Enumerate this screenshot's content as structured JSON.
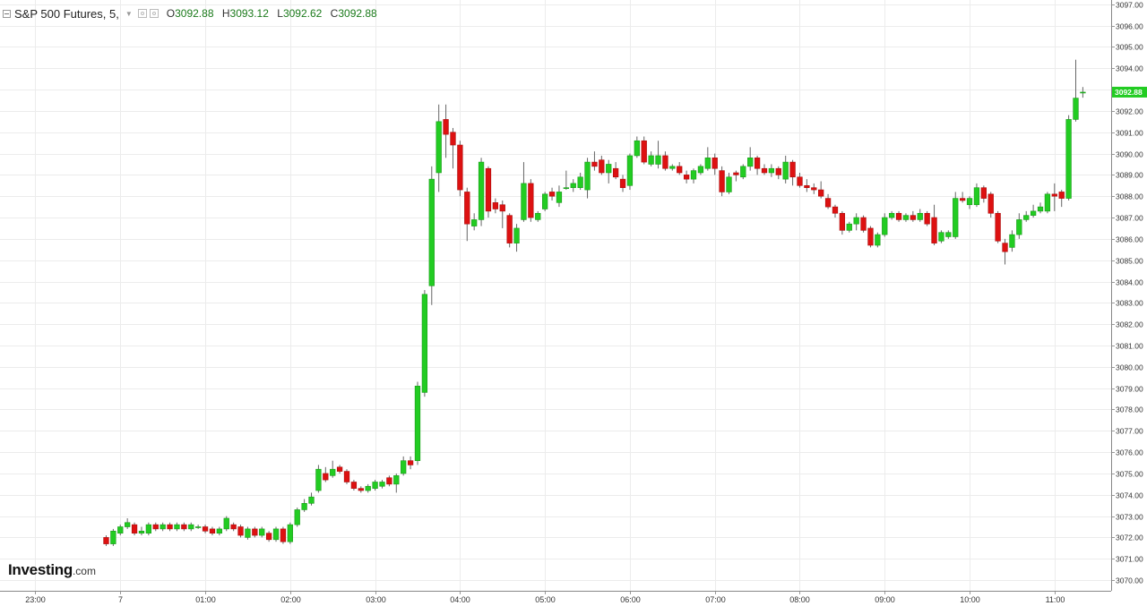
{
  "header": {
    "title": "S&P 500 Futures, 5,",
    "open_label": "O",
    "open": "3092.88",
    "high_label": "H",
    "high": "3093.12",
    "low_label": "L",
    "low": "3092.62",
    "close_label": "C",
    "close": "3092.88"
  },
  "logo": {
    "main": "Investing",
    "suffix": ".com"
  },
  "colors": {
    "up": "#22cc22",
    "down": "#dd1111",
    "wick": "#666666",
    "grid": "#ececec",
    "last_price_bg": "#22cc22"
  },
  "chart_data": {
    "type": "candlestick",
    "interval": "5",
    "ylim": [
      3069.5,
      3097.2
    ],
    "y_ticks": [
      "3070.00",
      "3071.00",
      "3072.00",
      "3073.00",
      "3074.00",
      "3075.00",
      "3076.00",
      "3077.00",
      "3078.00",
      "3079.00",
      "3080.00",
      "3081.00",
      "3082.00",
      "3083.00",
      "3084.00",
      "3085.00",
      "3086.00",
      "3087.00",
      "3088.00",
      "3089.00",
      "3090.00",
      "3091.00",
      "3092.00",
      "3093.00",
      "3094.00",
      "3095.00",
      "3096.00",
      "3097.00"
    ],
    "x_ticks": [
      {
        "label": "23:00",
        "t": -12
      },
      {
        "label": "7",
        "t": 0
      },
      {
        "label": "01:00",
        "t": 12
      },
      {
        "label": "02:00",
        "t": 24
      },
      {
        "label": "03:00",
        "t": 36
      },
      {
        "label": "04:00",
        "t": 48
      },
      {
        "label": "05:00",
        "t": 60
      },
      {
        "label": "06:00",
        "t": 72
      },
      {
        "label": "07:00",
        "t": 84
      },
      {
        "label": "08:00",
        "t": 96
      },
      {
        "label": "09:00",
        "t": 108
      },
      {
        "label": "10:00",
        "t": 120
      },
      {
        "label": "11:00",
        "t": 132
      }
    ],
    "t_range": [
      -17,
      140
    ],
    "last_price": "3092.88",
    "candles": [
      [
        3072.0,
        3071.7,
        3072.1,
        3071.6
      ],
      [
        3071.7,
        3072.3,
        3072.4,
        3071.6
      ],
      [
        3072.2,
        3072.5,
        3072.6,
        3072.1
      ],
      [
        3072.5,
        3072.7,
        3072.9,
        3072.4
      ],
      [
        3072.6,
        3072.2,
        3072.7,
        3072.1
      ],
      [
        3072.2,
        3072.3,
        3072.5,
        3072.1
      ],
      [
        3072.2,
        3072.6,
        3072.7,
        3072.1
      ],
      [
        3072.6,
        3072.4,
        3072.7,
        3072.3
      ],
      [
        3072.4,
        3072.6,
        3072.7,
        3072.3
      ],
      [
        3072.6,
        3072.4,
        3072.7,
        3072.3
      ],
      [
        3072.4,
        3072.6,
        3072.7,
        3072.3
      ],
      [
        3072.6,
        3072.4,
        3072.7,
        3072.3
      ],
      [
        3072.4,
        3072.6,
        3072.7,
        3072.3
      ],
      [
        3072.5,
        3072.5,
        3072.6,
        3072.4
      ],
      [
        3072.5,
        3072.3,
        3072.6,
        3072.2
      ],
      [
        3072.4,
        3072.2,
        3072.5,
        3072.1
      ],
      [
        3072.2,
        3072.4,
        3072.5,
        3072.1
      ],
      [
        3072.4,
        3072.9,
        3073.0,
        3072.3
      ],
      [
        3072.6,
        3072.4,
        3072.7,
        3072.3
      ],
      [
        3072.5,
        3072.1,
        3072.6,
        3072.0
      ],
      [
        3072.0,
        3072.4,
        3072.5,
        3071.9
      ],
      [
        3072.4,
        3072.1,
        3072.5,
        3072.0
      ],
      [
        3072.1,
        3072.4,
        3072.5,
        3072.0
      ],
      [
        3072.2,
        3071.9,
        3072.3,
        3071.8
      ],
      [
        3071.9,
        3072.4,
        3072.5,
        3071.8
      ],
      [
        3072.4,
        3071.8,
        3072.5,
        3071.7
      ],
      [
        3071.8,
        3072.6,
        3072.7,
        3071.7
      ],
      [
        3072.6,
        3073.3,
        3073.4,
        3072.5
      ],
      [
        3073.3,
        3073.6,
        3073.8,
        3073.2
      ],
      [
        3073.6,
        3073.9,
        3074.1,
        3073.5
      ],
      [
        3074.2,
        3075.2,
        3075.4,
        3074.1
      ],
      [
        3075.0,
        3074.7,
        3075.3,
        3074.6
      ],
      [
        3074.9,
        3075.2,
        3075.6,
        3074.8
      ],
      [
        3075.3,
        3075.1,
        3075.4,
        3075.0
      ],
      [
        3075.1,
        3074.6,
        3075.2,
        3074.5
      ],
      [
        3074.6,
        3074.3,
        3074.7,
        3074.2
      ],
      [
        3074.3,
        3074.2,
        3074.4,
        3074.1
      ],
      [
        3074.2,
        3074.4,
        3074.5,
        3074.1
      ],
      [
        3074.3,
        3074.6,
        3074.7,
        3074.2
      ],
      [
        3074.4,
        3074.6,
        3074.7,
        3074.3
      ],
      [
        3074.8,
        3074.5,
        3074.9,
        3074.4
      ],
      [
        3074.5,
        3074.9,
        3075.0,
        3074.1
      ],
      [
        3075.0,
        3075.6,
        3075.8,
        3074.9
      ],
      [
        3075.6,
        3075.4,
        3075.8,
        3075.2
      ],
      [
        3075.6,
        3079.1,
        3079.3,
        3075.4
      ],
      [
        3078.8,
        3083.4,
        3083.6,
        3078.6
      ],
      [
        3083.8,
        3088.8,
        3089.4,
        3082.9
      ],
      [
        3089.1,
        3091.5,
        3092.3,
        3088.2
      ],
      [
        3091.6,
        3090.9,
        3092.3,
        3089.8
      ],
      [
        3091.0,
        3090.4,
        3091.2,
        3089.3
      ],
      [
        3090.4,
        3088.3,
        3090.6,
        3088.0
      ],
      [
        3088.2,
        3086.7,
        3088.4,
        3085.9
      ],
      [
        3086.6,
        3086.9,
        3087.2,
        3086.4
      ],
      [
        3086.9,
        3089.6,
        3089.8,
        3086.6
      ],
      [
        3089.3,
        3087.3,
        3089.4,
        3087.0
      ],
      [
        3087.7,
        3087.4,
        3087.9,
        3087.2
      ],
      [
        3087.6,
        3087.3,
        3087.8,
        3086.5
      ],
      [
        3087.1,
        3085.8,
        3087.2,
        3085.6
      ],
      [
        3085.8,
        3086.5,
        3086.7,
        3085.4
      ],
      [
        3086.9,
        3088.6,
        3089.6,
        3086.8
      ],
      [
        3088.6,
        3087.0,
        3088.8,
        3086.8
      ],
      [
        3086.9,
        3087.2,
        3087.3,
        3086.8
      ],
      [
        3087.4,
        3088.1,
        3088.2,
        3087.3
      ],
      [
        3088.2,
        3088.0,
        3088.4,
        3087.8
      ],
      [
        3087.7,
        3088.2,
        3088.5,
        3087.5
      ],
      [
        3088.4,
        3088.4,
        3089.2,
        3088.3
      ],
      [
        3088.4,
        3088.6,
        3088.8,
        3088.2
      ],
      [
        3088.4,
        3088.9,
        3089.1,
        3088.3
      ],
      [
        3088.3,
        3089.6,
        3089.8,
        3087.9
      ],
      [
        3089.6,
        3089.4,
        3090.1,
        3089.2
      ],
      [
        3089.7,
        3089.1,
        3089.9,
        3089.0
      ],
      [
        3089.1,
        3089.5,
        3089.7,
        3088.6
      ],
      [
        3089.3,
        3088.9,
        3089.6,
        3088.8
      ],
      [
        3088.8,
        3088.4,
        3089.0,
        3088.2
      ],
      [
        3088.5,
        3089.9,
        3090.0,
        3088.3
      ],
      [
        3089.9,
        3090.6,
        3090.8,
        3089.8
      ],
      [
        3090.6,
        3089.6,
        3090.8,
        3089.5
      ],
      [
        3089.5,
        3089.9,
        3090.1,
        3089.4
      ],
      [
        3089.5,
        3089.9,
        3090.6,
        3089.3
      ],
      [
        3089.9,
        3089.3,
        3090.1,
        3089.2
      ],
      [
        3089.3,
        3089.4,
        3089.5,
        3089.2
      ],
      [
        3089.4,
        3089.1,
        3089.6,
        3089.0
      ],
      [
        3089.0,
        3088.8,
        3089.2,
        3088.6
      ],
      [
        3088.8,
        3089.2,
        3089.3,
        3088.6
      ],
      [
        3089.1,
        3089.4,
        3089.5,
        3089.0
      ],
      [
        3089.3,
        3089.8,
        3090.3,
        3089.2
      ],
      [
        3089.8,
        3089.3,
        3090.0,
        3089.0
      ],
      [
        3089.2,
        3088.2,
        3089.4,
        3088.0
      ],
      [
        3088.2,
        3088.9,
        3089.1,
        3088.1
      ],
      [
        3089.1,
        3089.0,
        3089.2,
        3088.7
      ],
      [
        3088.9,
        3089.4,
        3089.5,
        3088.8
      ],
      [
        3089.4,
        3089.8,
        3090.3,
        3089.2
      ],
      [
        3089.8,
        3089.3,
        3089.9,
        3089.0
      ],
      [
        3089.3,
        3089.1,
        3089.5,
        3089.0
      ],
      [
        3089.1,
        3089.3,
        3089.5,
        3088.9
      ],
      [
        3089.3,
        3089.0,
        3089.4,
        3088.8
      ],
      [
        3088.8,
        3089.6,
        3089.9,
        3088.6
      ],
      [
        3089.6,
        3088.9,
        3089.7,
        3088.5
      ],
      [
        3088.9,
        3088.5,
        3089.1,
        3088.4
      ],
      [
        3088.5,
        3088.4,
        3088.8,
        3088.2
      ],
      [
        3088.4,
        3088.3,
        3088.6,
        3088.1
      ],
      [
        3088.3,
        3088.0,
        3088.7,
        3087.9
      ],
      [
        3087.9,
        3087.5,
        3088.1,
        3087.4
      ],
      [
        3087.5,
        3087.2,
        3087.6,
        3087.0
      ],
      [
        3087.2,
        3086.4,
        3087.3,
        3086.2
      ],
      [
        3086.4,
        3086.7,
        3086.8,
        3086.3
      ],
      [
        3086.7,
        3087.0,
        3087.2,
        3086.4
      ],
      [
        3087.0,
        3086.4,
        3087.1,
        3086.3
      ],
      [
        3086.5,
        3085.7,
        3086.6,
        3085.6
      ],
      [
        3085.7,
        3086.2,
        3086.3,
        3085.6
      ],
      [
        3086.2,
        3087.0,
        3087.2,
        3086.1
      ],
      [
        3087.0,
        3087.2,
        3087.3,
        3086.9
      ],
      [
        3087.2,
        3086.9,
        3087.3,
        3086.8
      ],
      [
        3086.9,
        3087.1,
        3087.2,
        3086.8
      ],
      [
        3087.1,
        3086.9,
        3087.3,
        3086.8
      ],
      [
        3086.9,
        3087.2,
        3087.4,
        3086.8
      ],
      [
        3087.2,
        3086.7,
        3087.3,
        3086.6
      ],
      [
        3087.0,
        3085.8,
        3087.6,
        3085.7
      ],
      [
        3085.9,
        3086.3,
        3086.4,
        3085.8
      ],
      [
        3086.1,
        3086.3,
        3086.4,
        3086.0
      ],
      [
        3086.1,
        3087.9,
        3088.2,
        3086.0
      ],
      [
        3087.9,
        3087.8,
        3088.2,
        3087.7
      ],
      [
        3087.6,
        3087.9,
        3088.0,
        3087.4
      ],
      [
        3087.6,
        3088.4,
        3088.6,
        3087.5
      ],
      [
        3088.4,
        3087.9,
        3088.5,
        3087.7
      ],
      [
        3088.1,
        3087.2,
        3088.2,
        3087.0
      ],
      [
        3087.2,
        3085.9,
        3087.3,
        3085.8
      ],
      [
        3085.8,
        3085.4,
        3086.0,
        3084.8
      ],
      [
        3085.6,
        3086.2,
        3086.4,
        3085.4
      ],
      [
        3086.2,
        3086.9,
        3087.2,
        3086.0
      ],
      [
        3086.9,
        3087.1,
        3087.3,
        3086.8
      ],
      [
        3087.1,
        3087.3,
        3087.6,
        3087.0
      ],
      [
        3087.3,
        3087.5,
        3087.7,
        3087.2
      ],
      [
        3087.3,
        3088.1,
        3088.2,
        3087.2
      ],
      [
        3088.1,
        3088.0,
        3088.6,
        3087.3
      ],
      [
        3088.2,
        3087.9,
        3088.3,
        3087.5
      ],
      [
        3087.9,
        3091.6,
        3091.8,
        3087.8
      ],
      [
        3091.6,
        3092.6,
        3094.4,
        3091.5
      ],
      [
        3092.88,
        3092.88,
        3093.12,
        3092.62
      ]
    ]
  }
}
